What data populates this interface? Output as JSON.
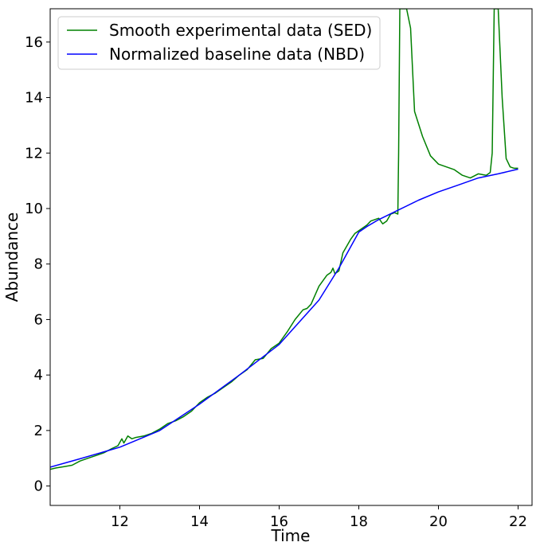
{
  "chart_data": {
    "type": "line",
    "xlabel": "Time",
    "ylabel": "Abundance",
    "xlim": [
      10.25,
      22.35
    ],
    "ylim": [
      -0.7,
      17.2
    ],
    "xticks": [
      12,
      14,
      16,
      18,
      20,
      22
    ],
    "yticks": [
      0,
      2,
      4,
      6,
      8,
      10,
      12,
      14,
      16
    ],
    "legend_position": "top-left",
    "grid": false,
    "series": [
      {
        "name": "Smooth experimental data (SED)",
        "color": "#008000",
        "x": [
          10.25,
          10.4,
          10.6,
          10.8,
          11.0,
          11.2,
          11.4,
          11.6,
          11.8,
          11.95,
          12.05,
          12.1,
          12.2,
          12.3,
          12.4,
          12.6,
          12.8,
          13.0,
          13.2,
          13.4,
          13.6,
          13.8,
          14.0,
          14.2,
          14.4,
          14.6,
          14.8,
          15.0,
          15.2,
          15.4,
          15.6,
          15.8,
          16.0,
          16.2,
          16.4,
          16.6,
          16.7,
          16.8,
          17.0,
          17.2,
          17.3,
          17.35,
          17.4,
          17.5,
          17.6,
          17.8,
          17.9,
          18.0,
          18.2,
          18.3,
          18.4,
          18.5,
          18.6,
          18.7,
          18.8,
          18.9,
          18.98,
          19.0,
          19.03,
          19.1,
          19.2,
          19.3,
          19.4,
          19.6,
          19.8,
          20.0,
          20.2,
          20.4,
          20.6,
          20.8,
          21.0,
          21.2,
          21.3,
          21.35,
          21.4,
          21.45,
          21.5,
          21.6,
          21.7,
          21.8,
          21.9,
          22.0
        ],
        "y": [
          0.6,
          0.65,
          0.7,
          0.75,
          0.9,
          1.0,
          1.1,
          1.2,
          1.35,
          1.45,
          1.7,
          1.55,
          1.8,
          1.7,
          1.75,
          1.8,
          1.9,
          2.05,
          2.25,
          2.35,
          2.5,
          2.7,
          3.0,
          3.2,
          3.35,
          3.55,
          3.75,
          4.0,
          4.2,
          4.55,
          4.6,
          4.95,
          5.15,
          5.55,
          6.0,
          6.35,
          6.4,
          6.55,
          7.2,
          7.6,
          7.7,
          7.85,
          7.65,
          7.75,
          8.4,
          8.9,
          9.1,
          9.2,
          9.4,
          9.55,
          9.6,
          9.65,
          9.45,
          9.55,
          9.8,
          9.85,
          9.8,
          12.0,
          17.2,
          17.2,
          17.2,
          16.5,
          13.5,
          12.6,
          11.9,
          11.6,
          11.5,
          11.4,
          11.2,
          11.1,
          11.25,
          11.2,
          11.3,
          12.0,
          17.2,
          17.2,
          17.2,
          14.0,
          11.8,
          11.5,
          11.45,
          11.45
        ]
      },
      {
        "name": "Normalized baseline data (NBD)",
        "color": "#0000ff",
        "x": [
          10.25,
          11.0,
          12.0,
          13.0,
          14.0,
          15.0,
          16.0,
          17.0,
          17.5,
          18.0,
          18.2,
          18.5,
          19.0,
          19.5,
          20.0,
          20.5,
          21.0,
          21.5,
          22.0
        ],
        "y": [
          0.68,
          0.98,
          1.4,
          2.0,
          2.95,
          4.0,
          5.1,
          6.7,
          7.85,
          9.15,
          9.35,
          9.6,
          9.95,
          10.3,
          10.6,
          10.85,
          11.1,
          11.25,
          11.42
        ]
      }
    ]
  }
}
